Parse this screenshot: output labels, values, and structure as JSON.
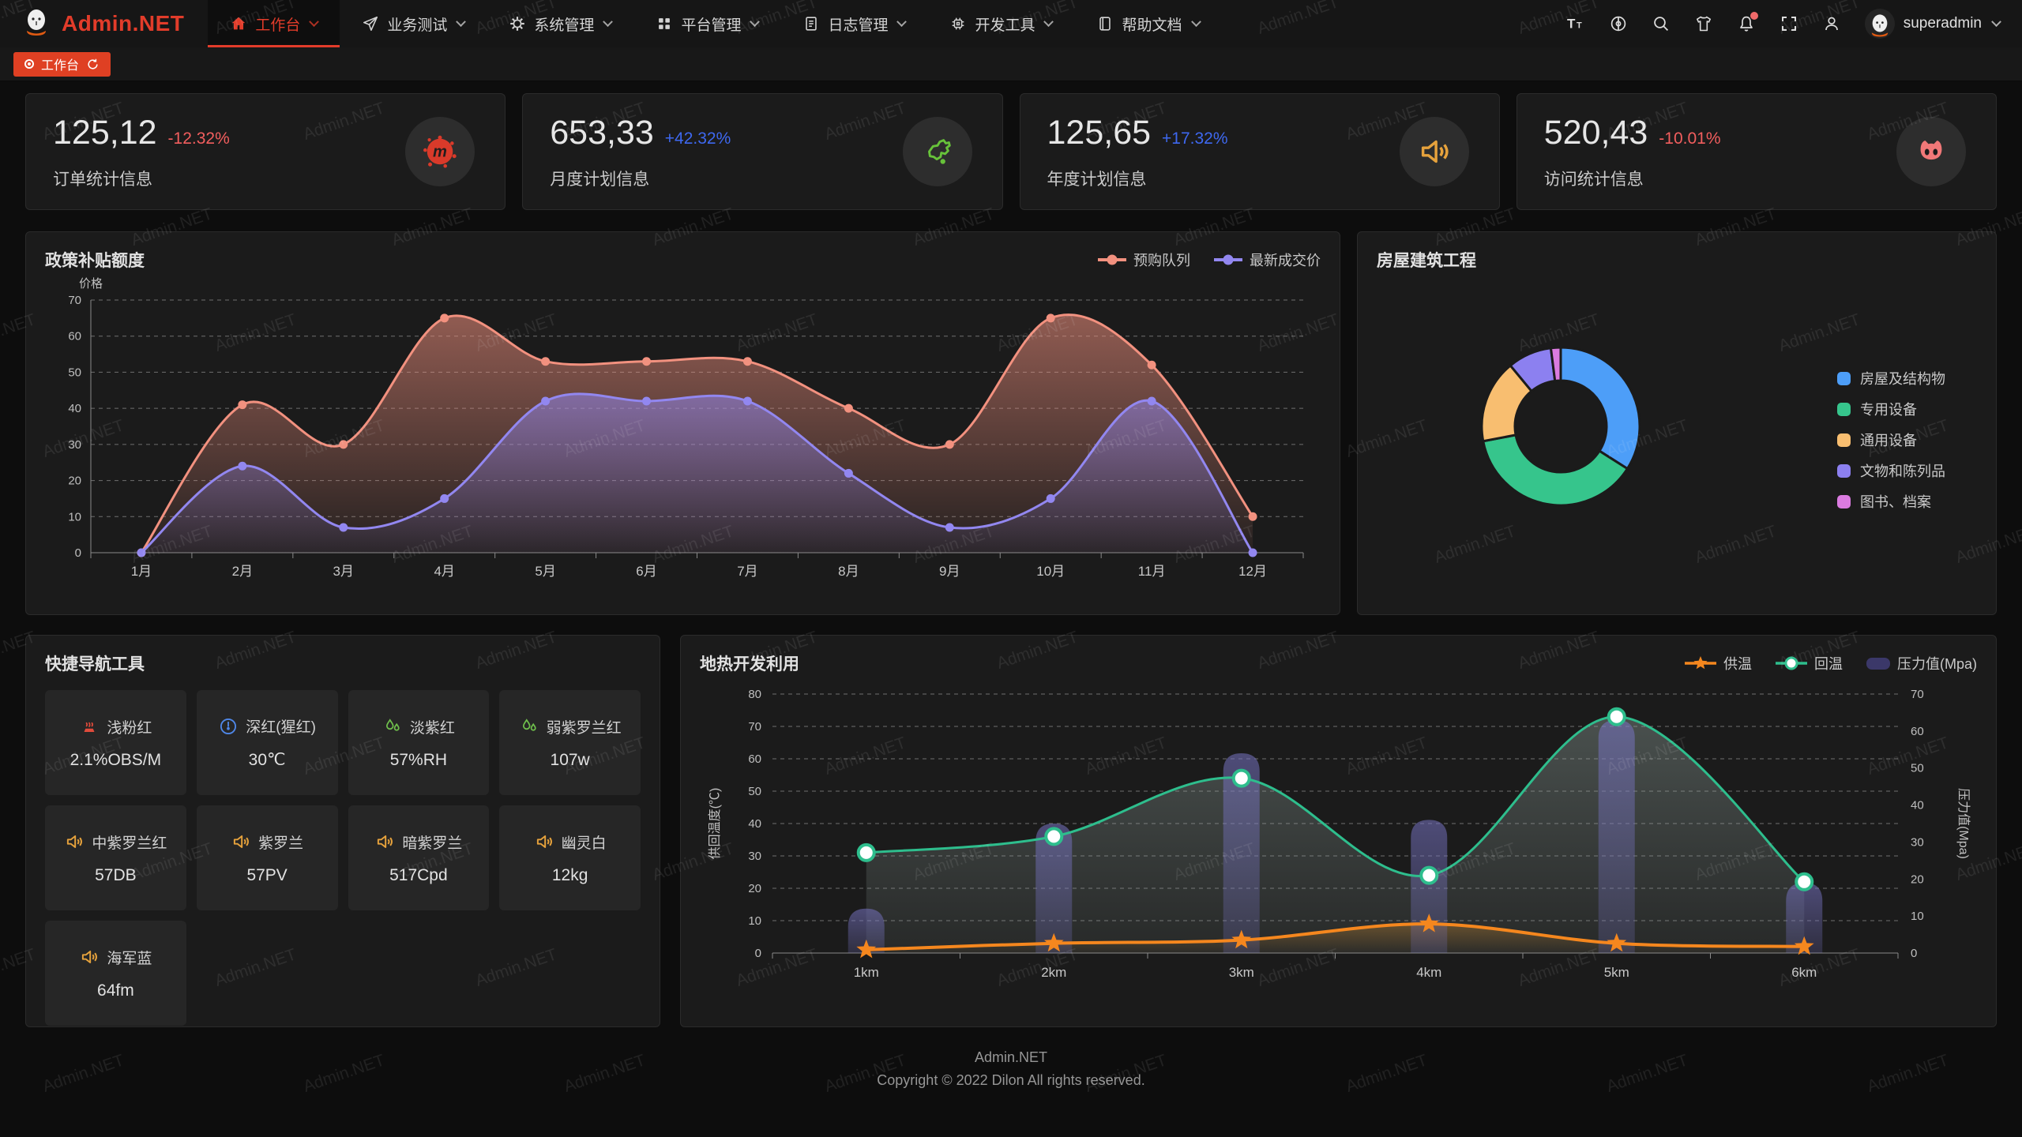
{
  "header": {
    "logo_text": "Admin.NET",
    "menu": [
      {
        "label": "工作台",
        "icon": "home-icon",
        "active": true
      },
      {
        "label": "业务测试",
        "icon": "send-icon",
        "active": false
      },
      {
        "label": "系统管理",
        "icon": "gear-icon",
        "active": false
      },
      {
        "label": "平台管理",
        "icon": "grid-icon",
        "active": false
      },
      {
        "label": "日志管理",
        "icon": "log-icon",
        "active": false
      },
      {
        "label": "开发工具",
        "icon": "chip-icon",
        "active": false
      },
      {
        "label": "帮助文档",
        "icon": "book-icon",
        "active": false
      }
    ],
    "actions": [
      {
        "icon": "font-size-icon",
        "badge": false
      },
      {
        "icon": "language-icon",
        "badge": false
      },
      {
        "icon": "search-icon",
        "badge": false
      },
      {
        "icon": "theme-icon",
        "badge": false
      },
      {
        "icon": "notification-icon",
        "badge": true
      },
      {
        "icon": "fullscreen-icon",
        "badge": false
      },
      {
        "icon": "user-icon",
        "badge": false
      }
    ],
    "username": "superadmin"
  },
  "tabbar": {
    "active_tab": "工作台"
  },
  "stats": [
    {
      "value": "125,12",
      "delta": "-12.32%",
      "trend": "down",
      "label": "订单统计信息",
      "icon": "meetup-icon",
      "icon_color": "#d93a2a"
    },
    {
      "value": "653,33",
      "delta": "+42.32%",
      "trend": "up",
      "label": "月度计划信息",
      "icon": "china-map-icon",
      "icon_color": "#67c23a"
    },
    {
      "value": "125,65",
      "delta": "+17.32%",
      "trend": "up",
      "label": "年度计划信息",
      "icon": "speaker-icon",
      "icon_color": "#e6a23c"
    },
    {
      "value": "520,43",
      "delta": "-10.01%",
      "trend": "down",
      "label": "访问统计信息",
      "icon": "cat-icon",
      "icon_color": "#f07878"
    }
  ],
  "colors": {
    "up": "#3e68f0",
    "down": "#f25e5e",
    "accent": "#e23c2a"
  },
  "chart_data": [
    {
      "type": "line",
      "title": "政策补贴额度",
      "ylabel": "价格",
      "categories": [
        "1月",
        "2月",
        "3月",
        "4月",
        "5月",
        "6月",
        "7月",
        "8月",
        "9月",
        "10月",
        "11月",
        "12月"
      ],
      "series": [
        {
          "name": "预购队列",
          "color": "#f2917f",
          "values": [
            0,
            41,
            30,
            65,
            53,
            53,
            53,
            40,
            30,
            65,
            52,
            10
          ]
        },
        {
          "name": "最新成交价",
          "color": "#9287f0",
          "values": [
            0,
            24,
            7,
            15,
            42,
            42,
            42,
            22,
            7,
            15,
            42,
            0
          ]
        }
      ],
      "ylim": [
        0,
        70
      ],
      "ystep": 10,
      "grid": "dashed",
      "legend_position": "top-right"
    },
    {
      "type": "pie",
      "title": "房屋建筑工程",
      "donut": true,
      "legend_position": "right",
      "slices": [
        {
          "label": "房屋及结构物",
          "value": 34,
          "color": "#4d9ef8"
        },
        {
          "label": "专用设备",
          "value": 38,
          "color": "#36c58c"
        },
        {
          "label": "通用设备",
          "value": 17,
          "color": "#f8be70"
        },
        {
          "label": "文物和陈列品",
          "value": 9,
          "color": "#8c80f0"
        },
        {
          "label": "图书、档案",
          "value": 2,
          "color": "#db7be0"
        }
      ]
    },
    {
      "type": "line-bar",
      "title": "地热开发利用",
      "categories": [
        "1km",
        "2km",
        "3km",
        "4km",
        "5km",
        "6km"
      ],
      "ylabel_left": "供回温度(℃)",
      "ylabel_right": "压力值(Mpa)",
      "ylim_left": [
        0,
        80
      ],
      "ylim_right": [
        0,
        70
      ],
      "series": [
        {
          "name": "供温",
          "chart": "line",
          "marker": "star",
          "color": "#f5871e",
          "axis": "left",
          "values": [
            1,
            3,
            4,
            9,
            3,
            2
          ]
        },
        {
          "name": "回温",
          "chart": "line",
          "marker": "circle",
          "color": "#2ebe8d",
          "axis": "left",
          "values": [
            31,
            36,
            54,
            24,
            73,
            22
          ]
        },
        {
          "name": "压力值(Mpa)",
          "chart": "bar",
          "color": "#3b3869",
          "axis": "right",
          "values": [
            12,
            35,
            54,
            36,
            63,
            19
          ]
        }
      ]
    }
  ],
  "quick_nav": {
    "title": "快捷导航工具",
    "items": [
      {
        "name": "浅粉红",
        "value": "2.1%OBS/M",
        "icon": "heat-icon",
        "icon_color": "#e04b3b"
      },
      {
        "name": "深红(猩红)",
        "value": "30℃",
        "icon": "gauge-icon",
        "icon_color": "#4f87e8"
      },
      {
        "name": "淡紫红",
        "value": "57%RH",
        "icon": "drops-icon",
        "icon_color": "#6fbf4c"
      },
      {
        "name": "弱紫罗兰红",
        "value": "107w",
        "icon": "drops-icon",
        "icon_color": "#6fbf4c"
      },
      {
        "name": "中紫罗兰红",
        "value": "57DB",
        "icon": "speaker-icon",
        "icon_color": "#e6a23c"
      },
      {
        "name": "紫罗兰",
        "value": "57PV",
        "icon": "speaker-icon",
        "icon_color": "#e6a23c"
      },
      {
        "name": "暗紫罗兰",
        "value": "517Cpd",
        "icon": "speaker-icon",
        "icon_color": "#e6a23c"
      },
      {
        "name": "幽灵白",
        "value": "12kg",
        "icon": "speaker-icon",
        "icon_color": "#e6a23c"
      },
      {
        "name": "海军蓝",
        "value": "64fm",
        "icon": "speaker-icon",
        "icon_color": "#e6a23c"
      }
    ]
  },
  "footer": {
    "line1": "Admin.NET",
    "line2": "Copyright © 2022 Dilon All rights reserved."
  },
  "watermark": {
    "text": "Admin.NET"
  }
}
